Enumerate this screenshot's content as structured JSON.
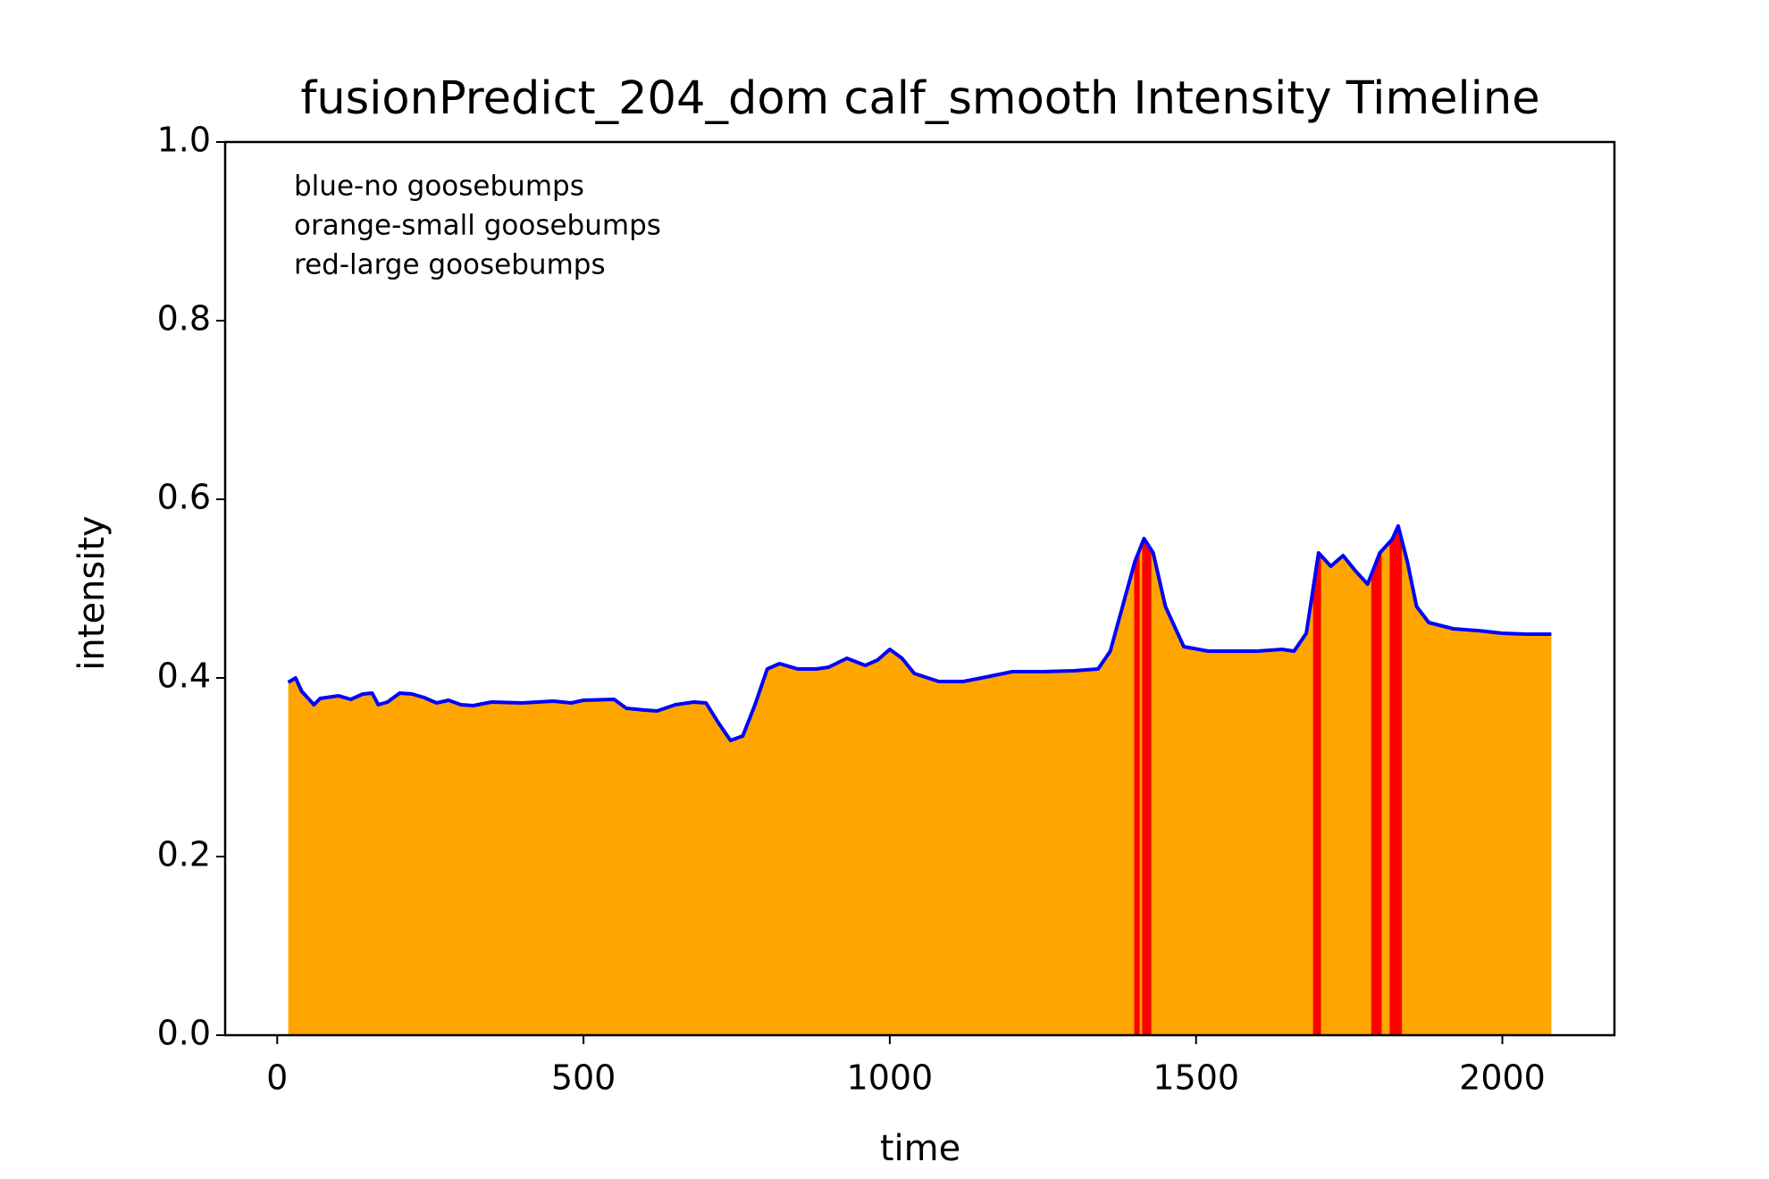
{
  "chart_data": {
    "type": "area",
    "title": "fusionPredict_204_dom calf_smooth Intensity Timeline",
    "xlabel": "time",
    "ylabel": "intensity",
    "annotations": [
      "blue-no goosebumps",
      "orange-small goosebumps",
      "red-large goosebumps"
    ],
    "x": [
      18,
      30,
      40,
      60,
      70,
      100,
      120,
      140,
      155,
      165,
      180,
      200,
      220,
      240,
      260,
      280,
      300,
      320,
      350,
      400,
      450,
      480,
      500,
      550,
      570,
      600,
      620,
      650,
      680,
      700,
      720,
      740,
      760,
      780,
      800,
      820,
      850,
      880,
      900,
      930,
      960,
      980,
      1000,
      1020,
      1040,
      1080,
      1120,
      1150,
      1200,
      1250,
      1300,
      1340,
      1360,
      1380,
      1400,
      1415,
      1430,
      1450,
      1480,
      1520,
      1560,
      1600,
      1640,
      1660,
      1680,
      1700,
      1720,
      1740,
      1760,
      1780,
      1800,
      1820,
      1830,
      1845,
      1860,
      1880,
      1920,
      1960,
      2000,
      2040,
      2080
    ],
    "values": [
      0.395,
      0.4,
      0.385,
      0.37,
      0.377,
      0.38,
      0.376,
      0.382,
      0.383,
      0.37,
      0.373,
      0.383,
      0.382,
      0.378,
      0.372,
      0.375,
      0.37,
      0.369,
      0.373,
      0.372,
      0.374,
      0.372,
      0.375,
      0.376,
      0.366,
      0.364,
      0.363,
      0.37,
      0.373,
      0.372,
      0.35,
      0.33,
      0.335,
      0.37,
      0.41,
      0.416,
      0.41,
      0.41,
      0.412,
      0.422,
      0.414,
      0.42,
      0.432,
      0.422,
      0.405,
      0.396,
      0.396,
      0.4,
      0.407,
      0.407,
      0.408,
      0.41,
      0.43,
      0.48,
      0.53,
      0.556,
      0.54,
      0.48,
      0.435,
      0.43,
      0.43,
      0.43,
      0.432,
      0.43,
      0.45,
      0.54,
      0.525,
      0.537,
      0.52,
      0.505,
      0.54,
      0.555,
      0.57,
      0.53,
      0.48,
      0.462,
      0.455,
      0.453,
      0.45,
      0.449,
      0.449
    ],
    "line_color": "blue",
    "fill_color": "orange",
    "span_color": "red",
    "red_spans": [
      [
        1399,
        1408
      ],
      [
        1412,
        1427
      ],
      [
        1691,
        1704
      ],
      [
        1786,
        1803
      ],
      [
        1816,
        1836
      ]
    ],
    "xlim": [
      -85,
      2183
    ],
    "ylim": [
      0,
      1
    ],
    "xticks": [
      0,
      500,
      1000,
      1500,
      2000
    ],
    "yticks": [
      {
        "value": 0,
        "label": "0.0"
      },
      0.2,
      0.4,
      0.6,
      0.8,
      {
        "value": 1,
        "label": "1.0"
      }
    ]
  }
}
